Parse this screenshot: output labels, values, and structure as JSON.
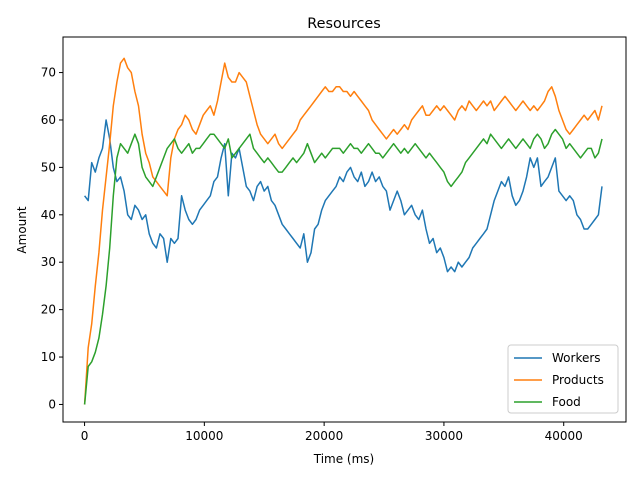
{
  "chart_data": {
    "type": "line",
    "title": "Resources",
    "xlabel": "Time (ms)",
    "ylabel": "Amount",
    "xlim": [
      -1800,
      45200
    ],
    "ylim": [
      -3.7,
      77.5
    ],
    "xticks": [
      0,
      10000,
      20000,
      30000,
      40000
    ],
    "yticks": [
      0,
      10,
      20,
      30,
      40,
      50,
      60,
      70
    ],
    "grid": false,
    "legend": "lower-right",
    "series": [
      {
        "name": "Workers",
        "color": "#1f77b4",
        "x": [
          0,
          300,
          600,
          900,
          1200,
          1500,
          1800,
          2100,
          2400,
          2700,
          3000,
          3300,
          3600,
          3900,
          4200,
          4500,
          4800,
          5100,
          5400,
          5700,
          6000,
          6300,
          6600,
          6900,
          7200,
          7500,
          7800,
          8100,
          8400,
          8700,
          9000,
          9300,
          9600,
          9900,
          10200,
          10500,
          10800,
          11100,
          11400,
          11700,
          12000,
          12300,
          12600,
          12900,
          13200,
          13500,
          13800,
          14100,
          14400,
          14700,
          15000,
          15300,
          15600,
          15900,
          16200,
          16500,
          16800,
          17100,
          17400,
          17700,
          18000,
          18300,
          18600,
          18900,
          19200,
          19500,
          19800,
          20100,
          20400,
          20700,
          21000,
          21300,
          21600,
          21900,
          22200,
          22500,
          22800,
          23100,
          23400,
          23700,
          24000,
          24300,
          24600,
          24900,
          25200,
          25500,
          25800,
          26100,
          26400,
          26700,
          27000,
          27300,
          27600,
          27900,
          28200,
          28500,
          28800,
          29100,
          29400,
          29700,
          30000,
          30300,
          30600,
          30900,
          31200,
          31500,
          31800,
          32100,
          32400,
          32700,
          33000,
          33300,
          33600,
          33900,
          34200,
          34500,
          34800,
          35100,
          35400,
          35700,
          36000,
          36300,
          36600,
          36900,
          37200,
          37500,
          37800,
          38100,
          38400,
          38700,
          39000,
          39300,
          39600,
          39900,
          40200,
          40500,
          40800,
          41100,
          41400,
          41700,
          42000,
          42300,
          42600,
          42900,
          43200
        ],
        "y": [
          44,
          43,
          51,
          49,
          52,
          54,
          60,
          56,
          50,
          47,
          48,
          45,
          40,
          39,
          42,
          41,
          39,
          40,
          36,
          34,
          33,
          36,
          35,
          30,
          35,
          34,
          35,
          44,
          41,
          39,
          38,
          39,
          41,
          42,
          43,
          44,
          47,
          48,
          52,
          55,
          44,
          53,
          52,
          54,
          50,
          46,
          45,
          43,
          46,
          47,
          45,
          46,
          43,
          42,
          40,
          38,
          37,
          36,
          35,
          34,
          33,
          36,
          30,
          32,
          37,
          38,
          41,
          43,
          44,
          45,
          46,
          48,
          47,
          49,
          50,
          48,
          47,
          49,
          46,
          47,
          49,
          47,
          48,
          46,
          45,
          41,
          43,
          45,
          43,
          40,
          41,
          42,
          40,
          39,
          41,
          37,
          34,
          35,
          32,
          33,
          31,
          28,
          29,
          28,
          30,
          29,
          30,
          31,
          33,
          34,
          35,
          36,
          37,
          40,
          43,
          45,
          47,
          46,
          48,
          44,
          42,
          43,
          45,
          48,
          52,
          50,
          52,
          46,
          47,
          48,
          50,
          52,
          45,
          44,
          43,
          44,
          43,
          40,
          39,
          37,
          37,
          38,
          39,
          40,
          46
        ]
      },
      {
        "name": "Products",
        "color": "#ff7f0e",
        "x": [
          0,
          300,
          600,
          900,
          1200,
          1500,
          1800,
          2100,
          2400,
          2700,
          3000,
          3300,
          3600,
          3900,
          4200,
          4500,
          4800,
          5100,
          5400,
          5700,
          6000,
          6300,
          6600,
          6900,
          7200,
          7500,
          7800,
          8100,
          8400,
          8700,
          9000,
          9300,
          9600,
          9900,
          10200,
          10500,
          10800,
          11100,
          11400,
          11700,
          12000,
          12300,
          12600,
          12900,
          13200,
          13500,
          13800,
          14100,
          14400,
          14700,
          15000,
          15300,
          15600,
          15900,
          16200,
          16500,
          16800,
          17100,
          17400,
          17700,
          18000,
          18300,
          18600,
          18900,
          19200,
          19500,
          19800,
          20100,
          20400,
          20700,
          21000,
          21300,
          21600,
          21900,
          22200,
          22500,
          22800,
          23100,
          23400,
          23700,
          24000,
          24300,
          24600,
          24900,
          25200,
          25500,
          25800,
          26100,
          26400,
          26700,
          27000,
          27300,
          27600,
          27900,
          28200,
          28500,
          28800,
          29100,
          29400,
          29700,
          30000,
          30300,
          30600,
          30900,
          31200,
          31500,
          31800,
          32100,
          32400,
          32700,
          33000,
          33300,
          33600,
          33900,
          34200,
          34500,
          34800,
          35100,
          35400,
          35700,
          36000,
          36300,
          36600,
          36900,
          37200,
          37500,
          37800,
          38100,
          38400,
          38700,
          39000,
          39300,
          39600,
          39900,
          40200,
          40500,
          40800,
          41100,
          41400,
          41700,
          42000,
          42300,
          42600,
          42900,
          43200
        ],
        "y": [
          0,
          12,
          17,
          25,
          32,
          41,
          48,
          55,
          63,
          68,
          72,
          73,
          71,
          70,
          66,
          63,
          57,
          53,
          51,
          48,
          47,
          46,
          45,
          44,
          52,
          56,
          58,
          59,
          61,
          60,
          58,
          57,
          59,
          61,
          62,
          63,
          61,
          64,
          68,
          72,
          69,
          68,
          68,
          70,
          69,
          68,
          65,
          62,
          59,
          57,
          56,
          55,
          56,
          57,
          55,
          54,
          55,
          56,
          57,
          58,
          60,
          61,
          62,
          63,
          64,
          65,
          66,
          67,
          66,
          66,
          67,
          67,
          66,
          66,
          65,
          66,
          65,
          64,
          63,
          62,
          60,
          59,
          58,
          57,
          56,
          57,
          58,
          57,
          58,
          59,
          58,
          60,
          61,
          62,
          63,
          61,
          61,
          62,
          63,
          62,
          63,
          62,
          61,
          60,
          62,
          63,
          62,
          64,
          63,
          62,
          63,
          64,
          63,
          64,
          62,
          63,
          64,
          65,
          64,
          63,
          62,
          63,
          64,
          63,
          62,
          63,
          62,
          63,
          64,
          66,
          67,
          65,
          62,
          60,
          58,
          57,
          58,
          59,
          60,
          61,
          60,
          61,
          62,
          60,
          63
        ]
      },
      {
        "name": "Food",
        "color": "#2ca02c",
        "x": [
          0,
          300,
          600,
          900,
          1200,
          1500,
          1800,
          2100,
          2400,
          2700,
          3000,
          3300,
          3600,
          3900,
          4200,
          4500,
          4800,
          5100,
          5400,
          5700,
          6000,
          6300,
          6600,
          6900,
          7200,
          7500,
          7800,
          8100,
          8400,
          8700,
          9000,
          9300,
          9600,
          9900,
          10200,
          10500,
          10800,
          11100,
          11400,
          11700,
          12000,
          12300,
          12600,
          12900,
          13200,
          13500,
          13800,
          14100,
          14400,
          14700,
          15000,
          15300,
          15600,
          15900,
          16200,
          16500,
          16800,
          17100,
          17400,
          17700,
          18000,
          18300,
          18600,
          18900,
          19200,
          19500,
          19800,
          20100,
          20400,
          20700,
          21000,
          21300,
          21600,
          21900,
          22200,
          22500,
          22800,
          23100,
          23400,
          23700,
          24000,
          24300,
          24600,
          24900,
          25200,
          25500,
          25800,
          26100,
          26400,
          26700,
          27000,
          27300,
          27600,
          27900,
          28200,
          28500,
          28800,
          29100,
          29400,
          29700,
          30000,
          30300,
          30600,
          30900,
          31200,
          31500,
          31800,
          32100,
          32400,
          32700,
          33000,
          33300,
          33600,
          33900,
          34200,
          34500,
          34800,
          35100,
          35400,
          35700,
          36000,
          36300,
          36600,
          36900,
          37200,
          37500,
          37800,
          38100,
          38400,
          38700,
          39000,
          39300,
          39600,
          39900,
          40200,
          40500,
          40800,
          41100,
          41400,
          41700,
          42000,
          42300,
          42600,
          42900,
          43200
        ],
        "y": [
          0,
          8,
          9,
          11,
          14,
          19,
          25,
          33,
          44,
          52,
          55,
          54,
          53,
          55,
          57,
          55,
          50,
          48,
          47,
          46,
          48,
          50,
          52,
          54,
          55,
          56,
          54,
          53,
          54,
          55,
          53,
          54,
          54,
          55,
          56,
          57,
          57,
          56,
          55,
          54,
          56,
          52,
          53,
          54,
          55,
          56,
          57,
          54,
          53,
          52,
          51,
          52,
          51,
          50,
          49,
          49,
          50,
          51,
          52,
          51,
          52,
          53,
          55,
          53,
          51,
          52,
          53,
          52,
          53,
          54,
          54,
          54,
          53,
          54,
          55,
          54,
          54,
          53,
          54,
          55,
          54,
          53,
          53,
          52,
          53,
          54,
          55,
          54,
          53,
          54,
          53,
          54,
          55,
          54,
          53,
          52,
          53,
          52,
          51,
          50,
          49,
          47,
          46,
          47,
          48,
          49,
          51,
          52,
          53,
          54,
          55,
          56,
          55,
          57,
          56,
          55,
          54,
          55,
          56,
          55,
          54,
          55,
          56,
          55,
          54,
          56,
          57,
          56,
          54,
          55,
          57,
          58,
          57,
          56,
          54,
          55,
          54,
          53,
          52,
          53,
          54,
          54,
          52,
          53,
          56
        ]
      }
    ]
  }
}
